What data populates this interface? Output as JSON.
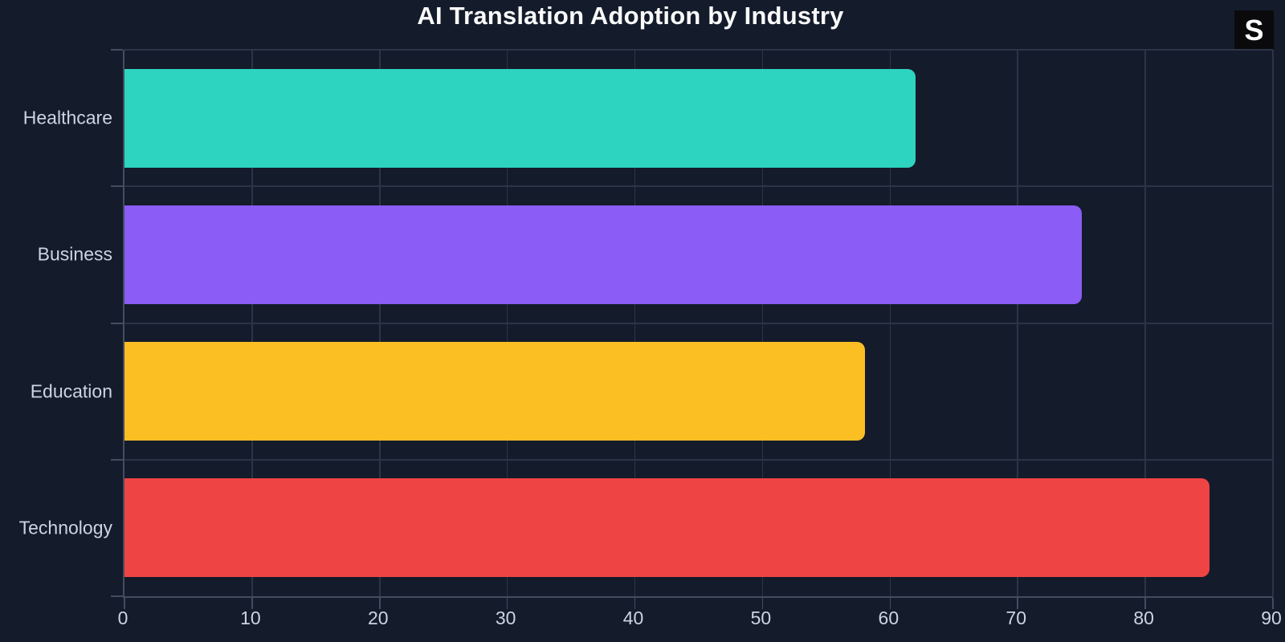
{
  "chart_data": {
    "type": "bar",
    "orientation": "horizontal",
    "title": "AI Translation Adoption by Industry",
    "categories": [
      "Healthcare",
      "Business",
      "Education",
      "Technology"
    ],
    "values": [
      62,
      75,
      58,
      85
    ],
    "bar_colors": [
      "#2dd4bf",
      "#8b5cf6",
      "#fbbf24",
      "#ef4444"
    ],
    "xlim": [
      0,
      90
    ],
    "x_ticks": [
      0,
      10,
      20,
      30,
      40,
      50,
      60,
      70,
      80,
      90
    ],
    "xlabel": "",
    "ylabel": "",
    "grid": true,
    "legend": false
  },
  "badge": {
    "label": "S"
  },
  "colors": {
    "background": "#141b2b",
    "title_text": "#fafafa",
    "axis_text": "#cbd5e1",
    "gridline": "#2c3547",
    "axis_line": "#434c60",
    "badge_bg": "#0a0a0c",
    "badge_text": "#ffffff"
  }
}
